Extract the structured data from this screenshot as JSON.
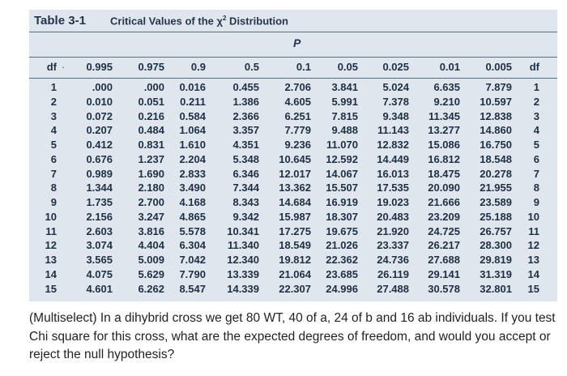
{
  "table": {
    "label": "Table 3-1",
    "title": "Critical Values of the",
    "title_symbol": "χ",
    "title_sup": "2",
    "title_tail": " Distribution",
    "p_label": "P",
    "headers": [
      "df",
      "0.995",
      "0.975",
      "0.9",
      "0.5",
      "0.1",
      "0.05",
      "0.025",
      "0.01",
      "0.005",
      "df"
    ],
    "rows": [
      [
        "1",
        ".000",
        ".000",
        "0.016",
        "0.455",
        "2.706",
        "3.841",
        "5.024",
        "6.635",
        "7.879",
        "1"
      ],
      [
        "2",
        "0.010",
        "0.051",
        "0.211",
        "1.386",
        "4.605",
        "5.991",
        "7.378",
        "9.210",
        "10.597",
        "2"
      ],
      [
        "3",
        "0.072",
        "0.216",
        "0.584",
        "2.366",
        "6.251",
        "7.815",
        "9.348",
        "11.345",
        "12.838",
        "3"
      ],
      [
        "4",
        "0.207",
        "0.484",
        "1.064",
        "3.357",
        "7.779",
        "9.488",
        "11.143",
        "13.277",
        "14.860",
        "4"
      ],
      [
        "5",
        "0.412",
        "0.831",
        "1.610",
        "4.351",
        "9.236",
        "11.070",
        "12.832",
        "15.086",
        "16.750",
        "5"
      ],
      [
        "6",
        "0.676",
        "1.237",
        "2.204",
        "5.348",
        "10.645",
        "12.592",
        "14.449",
        "16.812",
        "18.548",
        "6"
      ],
      [
        "7",
        "0.989",
        "1.690",
        "2.833",
        "6.346",
        "12.017",
        "14.067",
        "16.013",
        "18.475",
        "20.278",
        "7"
      ],
      [
        "8",
        "1.344",
        "2.180",
        "3.490",
        "7.344",
        "13.362",
        "15.507",
        "17.535",
        "20.090",
        "21.955",
        "8"
      ],
      [
        "9",
        "1.735",
        "2.700",
        "4.168",
        "8.343",
        "14.684",
        "16.919",
        "19.023",
        "21.666",
        "23.589",
        "9"
      ],
      [
        "10",
        "2.156",
        "3.247",
        "4.865",
        "9.342",
        "15.987",
        "18.307",
        "20.483",
        "23.209",
        "25.188",
        "10"
      ],
      [
        "11",
        "2.603",
        "3.816",
        "5.578",
        "10.341",
        "17.275",
        "19.675",
        "21.920",
        "24.725",
        "26.757",
        "11"
      ],
      [
        "12",
        "3.074",
        "4.404",
        "6.304",
        "11.340",
        "18.549",
        "21.026",
        "23.337",
        "26.217",
        "28.300",
        "12"
      ],
      [
        "13",
        "3.565",
        "5.009",
        "7.042",
        "12.340",
        "19.812",
        "22.362",
        "24.736",
        "27.688",
        "29.819",
        "13"
      ],
      [
        "14",
        "4.075",
        "5.629",
        "7.790",
        "13.339",
        "21.064",
        "23.685",
        "26.119",
        "29.141",
        "31.319",
        "14"
      ],
      [
        "15",
        "4.601",
        "6.262",
        "8.547",
        "14.339",
        "22.307",
        "24.996",
        "27.488",
        "30.578",
        "32.801",
        "15"
      ]
    ],
    "colors": {
      "panel": "#dfe6ee",
      "title": "#24364d",
      "rule": "#5a6b80"
    }
  },
  "question": {
    "text": "(Multiselect) In a dihybrid cross we get 80 WT, 40 of a, 24 of b and 16 ab individuals. If you test Chi square for this cross, what are the expected degrees of freedom, and would you accept or reject the null hypothesis?"
  }
}
